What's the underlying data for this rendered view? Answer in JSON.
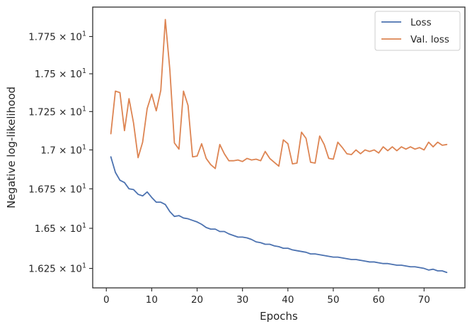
{
  "chart_data": {
    "type": "line",
    "xlabel": "Epochs",
    "ylabel": "Negative log-likelihood",
    "xlim": [
      -3,
      79
    ],
    "ylim": [
      16.13,
      17.95
    ],
    "x_ticks": [
      0,
      10,
      20,
      30,
      40,
      50,
      60,
      70
    ],
    "y_ticks": [
      {
        "value": 16.25,
        "mantissa": "1.625"
      },
      {
        "value": 16.5,
        "mantissa": "1.65"
      },
      {
        "value": 16.75,
        "mantissa": "1.675"
      },
      {
        "value": 17.0,
        "mantissa": "1.7"
      },
      {
        "value": 17.25,
        "mantissa": "1.725"
      },
      {
        "value": 17.5,
        "mantissa": "1.75"
      },
      {
        "value": 17.75,
        "mantissa": "1.775"
      }
    ],
    "y_tick_suffix": "× 10",
    "y_tick_exponent": "1",
    "y_scale": "log",
    "grid": false,
    "legend_position": "top-right",
    "x": [
      1,
      2,
      3,
      4,
      5,
      6,
      7,
      8,
      9,
      10,
      11,
      12,
      13,
      14,
      15,
      16,
      17,
      18,
      19,
      20,
      21,
      22,
      23,
      24,
      25,
      26,
      27,
      28,
      29,
      30,
      31,
      32,
      33,
      34,
      35,
      36,
      37,
      38,
      39,
      40,
      41,
      42,
      43,
      44,
      45,
      46,
      47,
      48,
      49,
      50,
      51,
      52,
      53,
      54,
      55,
      56,
      57,
      58,
      59,
      60,
      61,
      62,
      63,
      64,
      65,
      66,
      67,
      68,
      69,
      70,
      71,
      72,
      73,
      74,
      75
    ],
    "series": [
      {
        "name": "Loss",
        "color": "#4c72b0",
        "values": [
          16.955,
          16.855,
          16.805,
          16.79,
          16.75,
          16.745,
          16.715,
          16.705,
          16.73,
          16.695,
          16.665,
          16.665,
          16.65,
          16.605,
          16.575,
          16.58,
          16.565,
          16.56,
          16.55,
          16.54,
          16.525,
          16.505,
          16.495,
          16.495,
          16.48,
          16.48,
          16.465,
          16.455,
          16.445,
          16.445,
          16.44,
          16.43,
          16.415,
          16.41,
          16.4,
          16.4,
          16.39,
          16.385,
          16.375,
          16.375,
          16.365,
          16.36,
          16.355,
          16.35,
          16.34,
          16.34,
          16.335,
          16.33,
          16.325,
          16.32,
          16.32,
          16.315,
          16.31,
          16.305,
          16.305,
          16.3,
          16.295,
          16.29,
          16.29,
          16.285,
          16.28,
          16.28,
          16.275,
          16.27,
          16.27,
          16.265,
          16.26,
          16.26,
          16.255,
          16.25,
          16.24,
          16.245,
          16.235,
          16.235,
          16.225
        ]
      },
      {
        "name": "Val. loss",
        "color": "#dd8452",
        "values": [
          17.105,
          17.385,
          17.375,
          17.125,
          17.335,
          17.175,
          16.95,
          17.05,
          17.27,
          17.365,
          17.255,
          17.39,
          17.865,
          17.525,
          17.045,
          17.005,
          17.385,
          17.29,
          16.955,
          16.96,
          17.04,
          16.945,
          16.905,
          16.88,
          17.035,
          16.975,
          16.93,
          16.93,
          16.935,
          16.925,
          16.945,
          16.935,
          16.94,
          16.93,
          16.99,
          16.945,
          16.92,
          16.895,
          17.065,
          17.04,
          16.91,
          16.915,
          17.115,
          17.075,
          16.92,
          16.915,
          17.09,
          17.035,
          16.945,
          16.94,
          17.05,
          17.015,
          16.975,
          16.97,
          17.0,
          16.975,
          17.0,
          16.99,
          17.0,
          16.98,
          17.02,
          16.995,
          17.02,
          16.995,
          17.02,
          17.005,
          17.02,
          17.005,
          17.015,
          17.0,
          17.05,
          17.02,
          17.05,
          17.03,
          17.035
        ]
      }
    ]
  }
}
